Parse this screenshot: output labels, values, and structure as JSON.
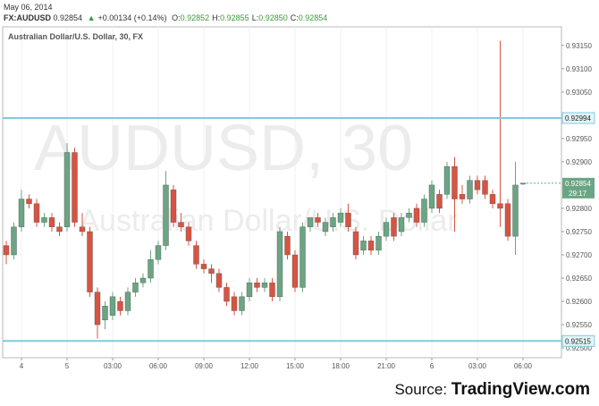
{
  "header": {
    "date": "May 06, 2014",
    "symbol": "FX:AUDUSD",
    "price": "0.92854",
    "change": "+0.00134 (+0.14%)",
    "ohlc": [
      {
        "label": "O:",
        "value": "0.92852"
      },
      {
        "label": "H:",
        "value": "0.92855"
      },
      {
        "label": "L:",
        "value": "0.92850"
      },
      {
        "label": "C:",
        "value": "0.92854"
      }
    ]
  },
  "chart_data": {
    "type": "candlestick",
    "title": "Australian Dollar/U.S. Dollar, 30, FX",
    "watermark": {
      "symbol": "AUDUSD, 30",
      "name": "Australian Dollar/U.S. Dollar"
    },
    "categories": [
      null,
      null,
      "4",
      null,
      null,
      null,
      null,
      null,
      "5",
      null,
      null,
      null,
      null,
      null,
      "03:00",
      null,
      null,
      null,
      null,
      null,
      "06:00",
      null,
      null,
      null,
      null,
      null,
      "09:00",
      null,
      null,
      null,
      null,
      null,
      "12:00",
      null,
      null,
      null,
      null,
      null,
      "15:00",
      null,
      null,
      null,
      null,
      null,
      "18:00",
      null,
      null,
      null,
      null,
      null,
      "21:00",
      null,
      null,
      null,
      null,
      null,
      "6",
      null,
      null,
      null,
      null,
      null,
      "03:00",
      null,
      null,
      null,
      null,
      null,
      "06:00"
    ],
    "open": [
      0.9272,
      0.927,
      0.9276,
      0.9282,
      0.9281,
      0.9277,
      0.9278,
      0.9276,
      0.9276,
      0.9292,
      0.9276,
      0.9275,
      0.9262,
      0.9256,
      0.9257,
      0.926,
      0.9258,
      0.9262,
      0.9264,
      0.9265,
      0.9269,
      0.9272,
      0.9284,
      0.9277,
      0.9276,
      0.9272,
      0.9268,
      0.9267,
      0.9266,
      0.9263,
      0.9261,
      0.9258,
      0.9261,
      0.9264,
      0.9263,
      0.9264,
      0.9261,
      0.9274,
      0.927,
      0.9263,
      0.9276,
      0.9278,
      0.9275,
      0.9276,
      0.9277,
      0.9279,
      0.9275,
      0.9271,
      0.9273,
      0.9271,
      0.9274,
      0.9278,
      0.9275,
      0.9278,
      0.928,
      0.9277,
      0.928,
      0.9283,
      0.9283,
      0.9289,
      0.9283,
      0.9282,
      0.9286,
      0.9286,
      0.9283,
      0.9281,
      0.9281,
      0.9274,
      0.92852
    ],
    "high": [
      0.9273,
      0.9277,
      0.9284,
      0.9283,
      0.9282,
      0.9279,
      0.9279,
      0.9277,
      0.9294,
      0.9293,
      0.9279,
      0.9276,
      0.9263,
      0.926,
      0.9262,
      0.9261,
      0.9263,
      0.9265,
      0.9266,
      0.9271,
      0.9273,
      0.9288,
      0.9285,
      0.9279,
      0.9277,
      0.9273,
      0.9269,
      0.9268,
      0.9267,
      0.9264,
      0.9262,
      0.9262,
      0.9265,
      0.9265,
      0.9265,
      0.9265,
      0.9276,
      0.9275,
      0.9271,
      0.9277,
      0.9278,
      0.9279,
      0.9278,
      0.9279,
      0.928,
      0.9281,
      0.9276,
      0.9274,
      0.9274,
      0.9275,
      0.9278,
      0.9279,
      0.9279,
      0.928,
      0.9281,
      0.9283,
      0.9286,
      0.9284,
      0.929,
      0.9291,
      0.9285,
      0.9287,
      0.9287,
      0.9287,
      0.9284,
      0.9316,
      0.9282,
      0.929,
      0.92855
    ],
    "low": [
      0.9268,
      0.9269,
      0.9275,
      0.928,
      0.9276,
      0.9276,
      0.9275,
      0.9274,
      0.9275,
      0.9276,
      0.9274,
      0.9261,
      0.9252,
      0.9254,
      0.9256,
      0.9257,
      0.9257,
      0.9261,
      0.9263,
      0.9264,
      0.9268,
      0.9271,
      0.9276,
      0.9275,
      0.9272,
      0.9267,
      0.9266,
      0.9264,
      0.9262,
      0.9259,
      0.9257,
      0.9257,
      0.926,
      0.9262,
      0.9262,
      0.926,
      0.926,
      0.9269,
      0.9262,
      0.9262,
      0.9275,
      0.9276,
      0.9274,
      0.9275,
      0.9276,
      0.9275,
      0.9269,
      0.927,
      0.927,
      0.927,
      0.9273,
      0.9273,
      0.9274,
      0.9277,
      0.9276,
      0.9276,
      0.9279,
      0.9279,
      0.9282,
      0.9275,
      0.9281,
      0.9281,
      0.9283,
      0.9282,
      0.928,
      0.9276,
      0.9273,
      0.927,
      0.9285
    ],
    "close": [
      0.927,
      0.9276,
      0.9282,
      0.9281,
      0.9277,
      0.9278,
      0.9276,
      0.9275,
      0.9292,
      0.9277,
      0.9275,
      0.9262,
      0.9255,
      0.9259,
      0.9261,
      0.9258,
      0.9262,
      0.9264,
      0.9265,
      0.9269,
      0.9272,
      0.9285,
      0.9277,
      0.9276,
      0.9273,
      0.9268,
      0.9267,
      0.9266,
      0.9263,
      0.926,
      0.9258,
      0.9261,
      0.9264,
      0.9263,
      0.9264,
      0.9261,
      0.9275,
      0.927,
      0.9263,
      0.9276,
      0.9278,
      0.9277,
      0.9277,
      0.9278,
      0.9279,
      0.9276,
      0.927,
      0.9273,
      0.9271,
      0.9274,
      0.9277,
      0.9274,
      0.9278,
      0.9279,
      0.9277,
      0.9282,
      0.9285,
      0.928,
      0.9289,
      0.9282,
      0.9282,
      0.9286,
      0.9284,
      0.9283,
      0.9281,
      0.928,
      0.9274,
      0.9285,
      0.92854
    ],
    "up_color": "#6ba583",
    "down_color": "#d75442",
    "ylim": [
      0.92479,
      0.9319
    ],
    "yticks": [
      {
        "value": 0.925,
        "label": "0.92500"
      },
      {
        "value": 0.9255,
        "label": "0.92550"
      },
      {
        "value": 0.926,
        "label": "0.92600"
      },
      {
        "value": 0.9265,
        "label": "0.92650"
      },
      {
        "value": 0.927,
        "label": "0.92700"
      },
      {
        "value": 0.9275,
        "label": "0.92750"
      },
      {
        "value": 0.928,
        "label": "0.92800"
      },
      {
        "value": 0.929,
        "label": "0.92900"
      },
      {
        "value": 0.9295,
        "label": "0.92950"
      },
      {
        "value": 0.9305,
        "label": "0.93050"
      },
      {
        "value": 0.931,
        "label": "0.93100"
      },
      {
        "value": 0.9315,
        "label": "0.93150"
      }
    ],
    "levels": [
      0.92994,
      0.92515
    ],
    "level_color": "#7fcbdc",
    "last_price": 0.92854,
    "countdown": "29:17",
    "grid": true
  },
  "source": {
    "prefix": "Source:",
    "site": "TradingView.com"
  }
}
